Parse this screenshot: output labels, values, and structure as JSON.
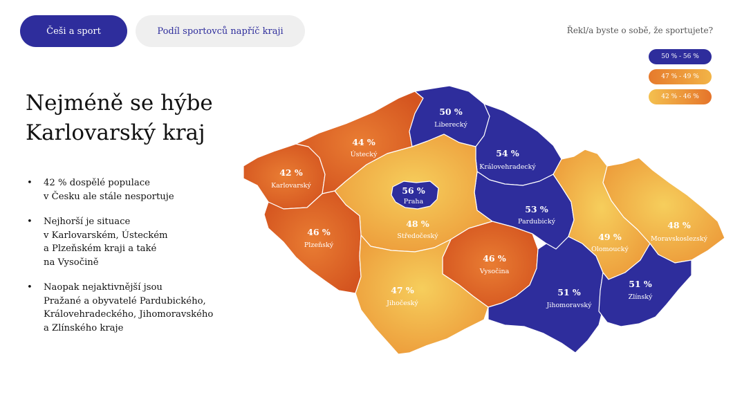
{
  "tabs": [
    {
      "label": "Češi a sport",
      "active": true
    },
    {
      "label": "Podíl sportovců napříč kraji",
      "active": false
    }
  ],
  "question": "Řekl/a byste o sobě, že sportujete?",
  "legend": [
    {
      "label": "50 % - 56 %",
      "color": "#2e2d9c"
    },
    {
      "label": "47 % - 49 %",
      "color": "#ec8c34"
    },
    {
      "label": "42 % - 46 %",
      "color": "#f2b447"
    }
  ],
  "headline": "Nejméně se hýbe Karlovarský kraj",
  "bullets": [
    "42 % dospělé populace\nv Česku ale stále nesportuje",
    "Nejhorší je situace\nv Karlovarském, Ústeckém\na Plzeňském kraji a také\nna Vysočině",
    "Naopak nejaktivnější jsou\nPražané a obyvatelé Pardubického,\nKrálovehradeckého, Jihomoravského\na Zlínského kraje"
  ],
  "colors": {
    "blue": "#2e2d9c",
    "orange": "#e5742a",
    "yellow": "#f2b447",
    "red": "#d95b24"
  },
  "map": {
    "regions": [
      {
        "id": "karlovarsky",
        "name": "Karlovarský",
        "percent": "42 %",
        "value": 42
      },
      {
        "id": "ustecky",
        "name": "Ústecký",
        "percent": "44 %",
        "value": 44
      },
      {
        "id": "liberecky",
        "name": "Liberecký",
        "percent": "50 %",
        "value": 50
      },
      {
        "id": "kralovehradecky",
        "name": "Královehradecký",
        "percent": "54 %",
        "value": 54
      },
      {
        "id": "praha",
        "name": "Praha",
        "percent": "56 %",
        "value": 56
      },
      {
        "id": "stredocesky",
        "name": "Středočeský",
        "percent": "48 %",
        "value": 48
      },
      {
        "id": "plzensky",
        "name": "Plzeňský",
        "percent": "46 %",
        "value": 46
      },
      {
        "id": "pardubicky",
        "name": "Pardubický",
        "percent": "53 %",
        "value": 53
      },
      {
        "id": "vysocina",
        "name": "Vysočina",
        "percent": "46 %",
        "value": 46
      },
      {
        "id": "jihocesky",
        "name": "Jihočeský",
        "percent": "47 %",
        "value": 47
      },
      {
        "id": "jihomoravsky",
        "name": "Jihomoravský",
        "percent": "51 %",
        "value": 51
      },
      {
        "id": "olomoucky",
        "name": "Olomoucký",
        "percent": "49 %",
        "value": 49
      },
      {
        "id": "moravskoslezsky",
        "name": "Moravskoslezský",
        "percent": "48 %",
        "value": 48
      },
      {
        "id": "zlinsky",
        "name": "Zlínský",
        "percent": "51 %",
        "value": 51
      }
    ]
  }
}
